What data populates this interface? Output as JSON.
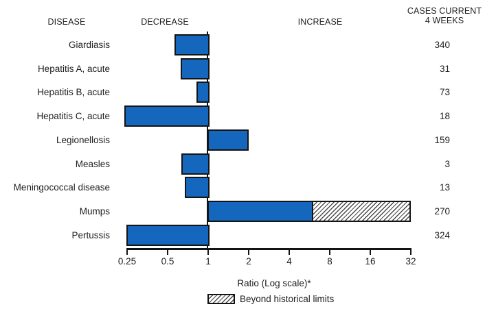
{
  "headers": {
    "disease": "DISEASE",
    "decrease": "DECREASE",
    "increase": "INCREASE",
    "cases_line1": "CASES CURRENT",
    "cases_line2": "4 WEEKS"
  },
  "chart_data": {
    "type": "bar",
    "orientation": "horizontal",
    "scale": "log2",
    "baseline": 1,
    "xlim": [
      0.25,
      32
    ],
    "x_ticks": [
      "0.25",
      "0.5",
      "1",
      "2",
      "4",
      "8",
      "16",
      "32"
    ],
    "xlabel": "Ratio (Log scale)*",
    "grid": false,
    "rows": [
      {
        "disease": "Giardiasis",
        "ratio": 0.57,
        "cases": "340",
        "beyond_historical_from": null
      },
      {
        "disease": "Hepatitis A, acute",
        "ratio": 0.63,
        "cases": "31",
        "beyond_historical_from": null
      },
      {
        "disease": "Hepatitis B, acute",
        "ratio": 0.83,
        "cases": "73",
        "beyond_historical_from": null
      },
      {
        "disease": "Hepatitis C, acute",
        "ratio": 0.24,
        "cases": "18",
        "beyond_historical_from": null
      },
      {
        "disease": "Legionellosis",
        "ratio": 2.0,
        "cases": "159",
        "beyond_historical_from": null
      },
      {
        "disease": "Measles",
        "ratio": 0.64,
        "cases": "3",
        "beyond_historical_from": null
      },
      {
        "disease": "Meningococcal disease",
        "ratio": 0.68,
        "cases": "13",
        "beyond_historical_from": null
      },
      {
        "disease": "Mumps",
        "ratio": 32,
        "cases": "270",
        "beyond_historical_from": 6
      },
      {
        "disease": "Pertussis",
        "ratio": 0.25,
        "cases": "324",
        "beyond_historical_from": null
      }
    ],
    "legend": {
      "label": "Beyond historical limits",
      "swatch": "hatched",
      "position": "bottom-center"
    },
    "colors": {
      "bar_fill": "#1467bd",
      "bar_border": "#141414",
      "hatch_line": "#4a4a4a",
      "text": "#1d1d1d",
      "background": "#ffffff"
    }
  }
}
